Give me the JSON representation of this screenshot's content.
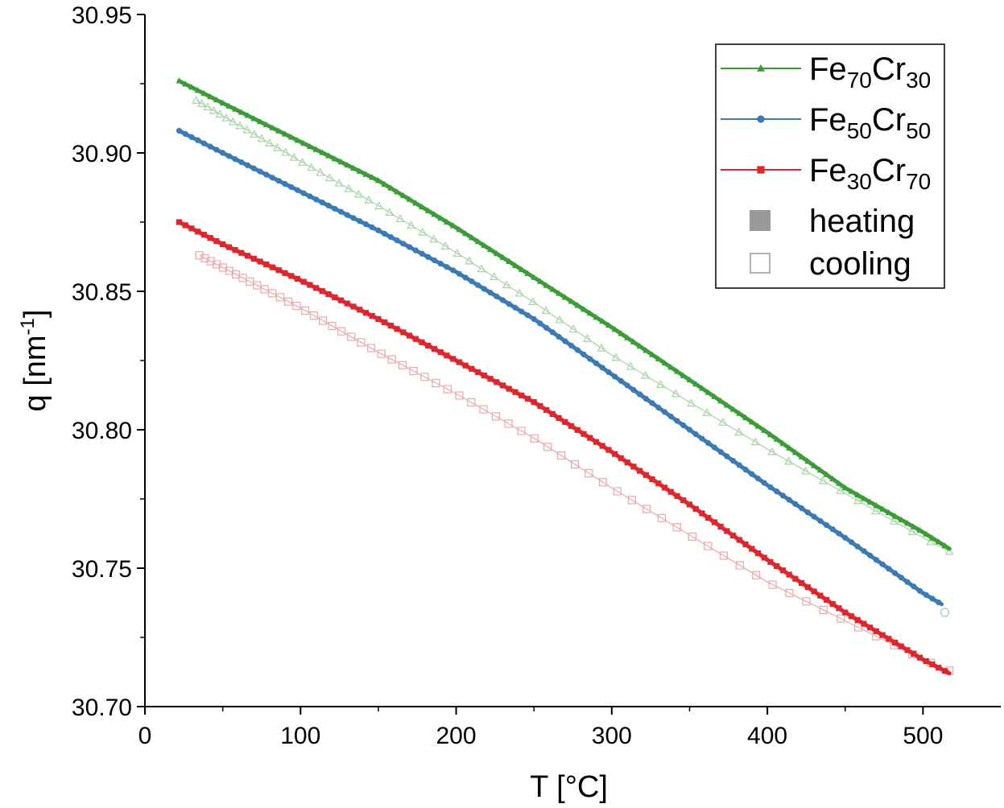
{
  "chart_data": {
    "type": "scatter",
    "title": "",
    "xlabel": "T [°C]",
    "ylabel": "q [nm-1]",
    "ylabel_base": "q [nm",
    "ylabel_sup": "-1",
    "ylabel_end": "]",
    "xlim": [
      0,
      550
    ],
    "ylim": [
      30.7,
      30.95
    ],
    "xticks": [
      0,
      100,
      200,
      300,
      400,
      500
    ],
    "xtick_labels": [
      "0",
      "100",
      "200",
      "300",
      "400",
      "500"
    ],
    "yticks": [
      30.7,
      30.75,
      30.8,
      30.85,
      30.9,
      30.95
    ],
    "ytick_labels": [
      "30.70",
      "30.75",
      "30.80",
      "30.85",
      "30.90",
      "30.95"
    ],
    "grid": false,
    "legend_position": "top-right",
    "series": [
      {
        "name": "Fe70Cr30",
        "label_parts": [
          [
            "Fe",
            false
          ],
          [
            "70",
            true
          ],
          [
            "Cr",
            false
          ],
          [
            "30",
            true
          ]
        ],
        "color": "#3a9e37",
        "light_color": "#a6d6a2",
        "marker": "triangle",
        "heating": {
          "x": [
            22,
            50,
            100,
            150,
            200,
            250,
            300,
            350,
            400,
            450,
            500,
            517
          ],
          "y": [
            30.926,
            30.918,
            30.904,
            30.89,
            30.873,
            30.855,
            30.837,
            30.818,
            30.799,
            30.779,
            30.763,
            30.757
          ]
        },
        "cooling": {
          "x": [
            33,
            100,
            150,
            200,
            250,
            300,
            350,
            400,
            450,
            500,
            517
          ],
          "y": [
            30.919,
            30.897,
            30.881,
            30.864,
            30.846,
            30.827,
            30.81,
            30.793,
            30.777,
            30.761,
            30.756
          ]
        }
      },
      {
        "name": "Fe50Cr50",
        "label_parts": [
          [
            "Fe",
            false
          ],
          [
            "50",
            true
          ],
          [
            "Cr",
            false
          ],
          [
            "50",
            true
          ]
        ],
        "color": "#3a7ab7",
        "light_color": "#9dc1e3",
        "marker": "circle",
        "heating": {
          "x": [
            22,
            50,
            100,
            150,
            200,
            250,
            300,
            350,
            400,
            450,
            500,
            512
          ],
          "y": [
            30.908,
            30.9,
            30.886,
            30.872,
            30.857,
            30.84,
            30.82,
            30.8,
            30.78,
            30.761,
            30.741,
            30.737
          ]
        },
        "cooling": {
          "x": [
            514
          ],
          "y": [
            30.734
          ]
        }
      },
      {
        "name": "Fe30Cr70",
        "label_parts": [
          [
            "Fe",
            false
          ],
          [
            "30",
            true
          ],
          [
            "Cr",
            false
          ],
          [
            "70",
            true
          ]
        ],
        "color": "#e3242b",
        "light_color": "#f4a6a6",
        "marker": "square",
        "heating": {
          "x": [
            22,
            50,
            100,
            150,
            200,
            250,
            300,
            350,
            400,
            450,
            500,
            517
          ],
          "y": [
            30.875,
            30.867,
            30.854,
            30.84,
            30.825,
            30.81,
            30.792,
            30.773,
            30.753,
            30.734,
            30.717,
            30.712
          ]
        },
        "cooling": {
          "x": [
            35,
            100,
            150,
            200,
            250,
            300,
            350,
            400,
            450,
            500,
            517
          ],
          "y": [
            30.863,
            30.844,
            30.828,
            30.813,
            30.797,
            30.779,
            30.762,
            30.745,
            30.731,
            30.717,
            30.713
          ]
        }
      }
    ],
    "legend_extra": [
      {
        "label": "heating",
        "style": "filled-square",
        "color": "#999999"
      },
      {
        "label": "cooling",
        "style": "open-square",
        "color": "#999999"
      }
    ]
  }
}
